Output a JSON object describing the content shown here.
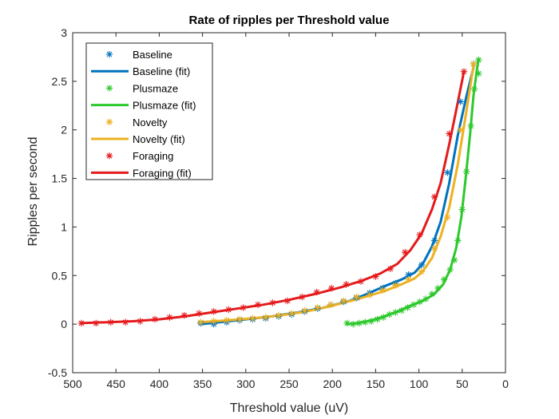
{
  "chart_data": {
    "type": "scatter",
    "title": "Rate of ripples per Threshold value",
    "xlabel": "Threshold value (uV)",
    "ylabel": "Ripples per second",
    "xlim": [
      500,
      0
    ],
    "x_reversed": true,
    "ylim": [
      -0.5,
      3
    ],
    "x_ticks": [
      500,
      450,
      400,
      350,
      300,
      250,
      200,
      150,
      100,
      50,
      0
    ],
    "y_ticks": [
      -0.5,
      0,
      0.5,
      1,
      1.5,
      2,
      2.5,
      3
    ],
    "y_tick_labels": [
      "-0.5",
      "0",
      "0.5",
      "1",
      "1.5",
      "2",
      "2.5",
      "3"
    ],
    "grid": false,
    "legend_position": "top-left",
    "legend": [
      {
        "label": "Baseline",
        "kind": "marker",
        "color": "#0072BD"
      },
      {
        "label": "Baseline (fit)",
        "kind": "line",
        "color": "#0072BD"
      },
      {
        "label": "Plusmaze",
        "kind": "marker",
        "color": "#2CC82C"
      },
      {
        "label": "Plusmaze (fit)",
        "kind": "line",
        "color": "#2CC82C"
      },
      {
        "label": "Novelty",
        "kind": "marker",
        "color": "#EDB120"
      },
      {
        "label": "Novelty (fit)",
        "kind": "line",
        "color": "#EDB120"
      },
      {
        "label": "Foraging",
        "kind": "marker",
        "color": "#E41A1C"
      },
      {
        "label": "Foraging (fit)",
        "kind": "line",
        "color": "#E41A1C"
      }
    ],
    "series": [
      {
        "name": "Baseline",
        "color": "#0072BD",
        "points": [
          [
            352,
            0.01
          ],
          [
            337,
            0.0
          ],
          [
            322,
            0.02
          ],
          [
            307,
            0.04
          ],
          [
            292,
            0.05
          ],
          [
            277,
            0.06
          ],
          [
            262,
            0.08
          ],
          [
            247,
            0.1
          ],
          [
            232,
            0.13
          ],
          [
            217,
            0.16
          ],
          [
            202,
            0.2
          ],
          [
            187,
            0.23
          ],
          [
            172,
            0.27
          ],
          [
            157,
            0.32
          ],
          [
            142,
            0.37
          ],
          [
            127,
            0.42
          ],
          [
            112,
            0.51
          ],
          [
            97,
            0.61
          ],
          [
            82,
            0.86
          ],
          [
            67,
            1.56
          ],
          [
            52,
            2.29
          ],
          [
            37,
            2.68
          ]
        ],
        "fit": [
          [
            352,
            0.0
          ],
          [
            330,
            0.02
          ],
          [
            300,
            0.05
          ],
          [
            270,
            0.08
          ],
          [
            240,
            0.12
          ],
          [
            210,
            0.17
          ],
          [
            180,
            0.24
          ],
          [
            160,
            0.31
          ],
          [
            140,
            0.39
          ],
          [
            120,
            0.46
          ],
          [
            105,
            0.53
          ],
          [
            95,
            0.63
          ],
          [
            85,
            0.8
          ],
          [
            75,
            1.05
          ],
          [
            65,
            1.45
          ],
          [
            55,
            1.95
          ],
          [
            45,
            2.35
          ],
          [
            37,
            2.64
          ]
        ]
      },
      {
        "name": "Plusmaze",
        "color": "#2CC82C",
        "points": [
          [
            183,
            0.01
          ],
          [
            176,
            0.0
          ],
          [
            169,
            0.01
          ],
          [
            162,
            0.02
          ],
          [
            155,
            0.03
          ],
          [
            148,
            0.05
          ],
          [
            141,
            0.07
          ],
          [
            134,
            0.1
          ],
          [
            127,
            0.12
          ],
          [
            120,
            0.14
          ],
          [
            113,
            0.17
          ],
          [
            106,
            0.2
          ],
          [
            99,
            0.23
          ],
          [
            92,
            0.26
          ],
          [
            85,
            0.31
          ],
          [
            78,
            0.37
          ],
          [
            71,
            0.46
          ],
          [
            64,
            0.56
          ],
          [
            59,
            0.66
          ],
          [
            55,
            0.86
          ],
          [
            50,
            1.18
          ],
          [
            45,
            1.57
          ],
          [
            40,
            2.04
          ],
          [
            36,
            2.42
          ],
          [
            31,
            2.58
          ],
          [
            31,
            2.72
          ]
        ],
        "fit": [
          [
            183,
            0.0
          ],
          [
            170,
            0.01
          ],
          [
            155,
            0.04
          ],
          [
            140,
            0.08
          ],
          [
            125,
            0.13
          ],
          [
            110,
            0.19
          ],
          [
            95,
            0.24
          ],
          [
            82,
            0.31
          ],
          [
            72,
            0.41
          ],
          [
            64,
            0.56
          ],
          [
            57,
            0.78
          ],
          [
            51,
            1.1
          ],
          [
            46,
            1.5
          ],
          [
            41,
            1.95
          ],
          [
            37,
            2.35
          ],
          [
            33,
            2.62
          ],
          [
            31,
            2.73
          ]
        ]
      },
      {
        "name": "Novelty",
        "color": "#EDB120",
        "points": [
          [
            352,
            0.02
          ],
          [
            337,
            0.03
          ],
          [
            322,
            0.04
          ],
          [
            307,
            0.05
          ],
          [
            292,
            0.06
          ],
          [
            277,
            0.07
          ],
          [
            262,
            0.09
          ],
          [
            247,
            0.11
          ],
          [
            232,
            0.14
          ],
          [
            217,
            0.17
          ],
          [
            202,
            0.2
          ],
          [
            187,
            0.24
          ],
          [
            172,
            0.28
          ],
          [
            157,
            0.3
          ],
          [
            142,
            0.35
          ],
          [
            127,
            0.4
          ],
          [
            112,
            0.46
          ],
          [
            97,
            0.54
          ],
          [
            82,
            0.78
          ],
          [
            67,
            1.1
          ],
          [
            52,
            2.0
          ],
          [
            37,
            2.68
          ]
        ],
        "fit": [
          [
            352,
            0.02
          ],
          [
            320,
            0.04
          ],
          [
            290,
            0.06
          ],
          [
            260,
            0.09
          ],
          [
            230,
            0.13
          ],
          [
            200,
            0.19
          ],
          [
            170,
            0.26
          ],
          [
            140,
            0.34
          ],
          [
            120,
            0.41
          ],
          [
            105,
            0.47
          ],
          [
            95,
            0.55
          ],
          [
            85,
            0.68
          ],
          [
            75,
            0.9
          ],
          [
            65,
            1.2
          ],
          [
            55,
            1.65
          ],
          [
            45,
            2.2
          ],
          [
            37,
            2.66
          ]
        ]
      },
      {
        "name": "Foraging",
        "color": "#E41A1C",
        "points": [
          [
            490,
            0.01
          ],
          [
            473,
            0.01
          ],
          [
            456,
            0.02
          ],
          [
            439,
            0.02
          ],
          [
            422,
            0.03
          ],
          [
            405,
            0.05
          ],
          [
            388,
            0.07
          ],
          [
            371,
            0.09
          ],
          [
            354,
            0.11
          ],
          [
            337,
            0.13
          ],
          [
            320,
            0.15
          ],
          [
            303,
            0.17
          ],
          [
            286,
            0.2
          ],
          [
            269,
            0.22
          ],
          [
            252,
            0.24
          ],
          [
            235,
            0.28
          ],
          [
            218,
            0.33
          ],
          [
            201,
            0.37
          ],
          [
            184,
            0.41
          ],
          [
            167,
            0.44
          ],
          [
            150,
            0.49
          ],
          [
            133,
            0.57
          ],
          [
            116,
            0.74
          ],
          [
            99,
            0.92
          ],
          [
            82,
            1.31
          ],
          [
            65,
            1.96
          ],
          [
            48,
            2.6
          ]
        ],
        "fit": [
          [
            490,
            0.01
          ],
          [
            460,
            0.02
          ],
          [
            430,
            0.03
          ],
          [
            400,
            0.05
          ],
          [
            370,
            0.08
          ],
          [
            340,
            0.12
          ],
          [
            310,
            0.16
          ],
          [
            280,
            0.2
          ],
          [
            250,
            0.25
          ],
          [
            220,
            0.31
          ],
          [
            190,
            0.38
          ],
          [
            165,
            0.45
          ],
          [
            145,
            0.52
          ],
          [
            125,
            0.62
          ],
          [
            110,
            0.76
          ],
          [
            97,
            0.93
          ],
          [
            85,
            1.18
          ],
          [
            75,
            1.45
          ],
          [
            65,
            1.85
          ],
          [
            57,
            2.2
          ],
          [
            48,
            2.6
          ]
        ]
      }
    ]
  }
}
